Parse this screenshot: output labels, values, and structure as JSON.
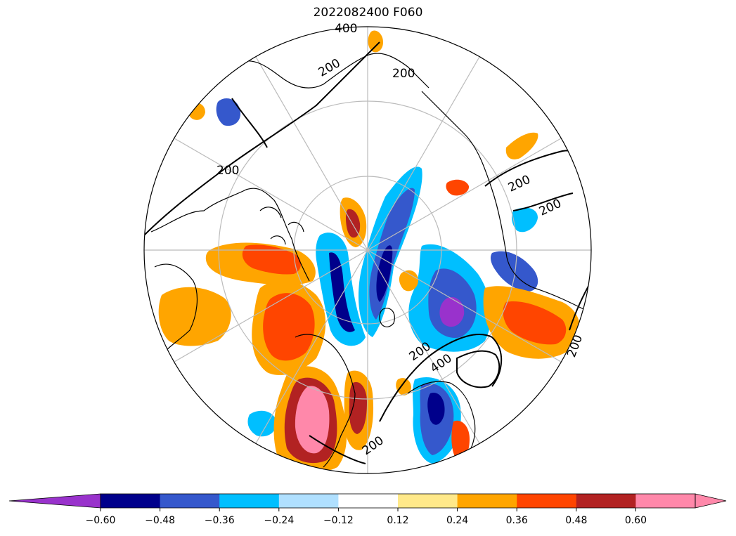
{
  "title": "2022082400 F060",
  "colorbar": {
    "extend": "both",
    "under_color": "#9932cc",
    "over_color": "#ff88aa",
    "bins": [
      {
        "color": "#9932cc"
      },
      {
        "color": "#00008b"
      },
      {
        "color": "#3558cc"
      },
      {
        "color": "#00bfff"
      },
      {
        "color": "#b0e0ff"
      },
      {
        "color": "#ffffff"
      },
      {
        "color": "#ffe98a"
      },
      {
        "color": "#ffa500"
      },
      {
        "color": "#ff4500"
      },
      {
        "color": "#b22222"
      },
      {
        "color": "#ff88aa"
      }
    ],
    "tick_labels": [
      "−0.60",
      "−0.48",
      "−0.36",
      "−0.24",
      "−0.12",
      "0.12",
      "0.24",
      "0.36",
      "0.48",
      "0.60"
    ]
  },
  "contour_labels": [
    "400",
    "200",
    "200",
    "200",
    "200",
    "200",
    "200",
    "200",
    "400",
    "200"
  ],
  "colors": {
    "graticule": "#bbbbbb",
    "coastline": "#000000",
    "contour": "#000000"
  }
}
